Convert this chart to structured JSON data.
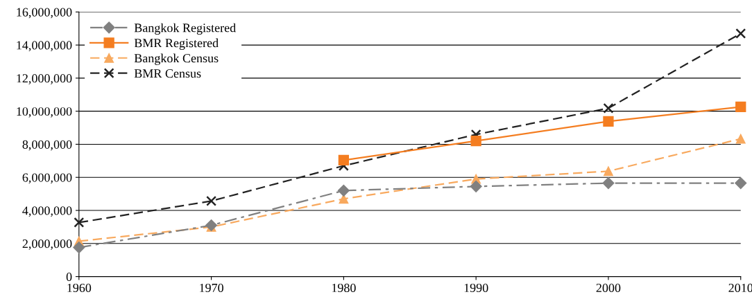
{
  "chart_data": {
    "type": "line",
    "x": [
      1960,
      1970,
      1980,
      1990,
      2000,
      2010
    ],
    "xlim": [
      1960,
      2010
    ],
    "xticks": [
      1960,
      1970,
      1980,
      1990,
      2000,
      2010
    ],
    "ylim": [
      0,
      16000000
    ],
    "yticks": [
      0,
      {
        "value": 2000000,
        "label": "2,000,000"
      },
      {
        "value": 4000000,
        "label": "4,000,000"
      },
      {
        "value": 6000000,
        "label": "6,000,000"
      },
      {
        "value": 8000000,
        "label": "8,000,000"
      },
      {
        "value": 10000000,
        "label": "10,000,000"
      },
      {
        "value": 12000000,
        "label": "12,000,000"
      },
      {
        "value": 14000000,
        "label": "14,000,000"
      },
      {
        "value": 16000000,
        "label": "16,000,000"
      }
    ],
    "grid": "y",
    "legend": "top left",
    "series": [
      {
        "name": "Bangkok Registered",
        "color": "#808080",
        "marker": "diamond",
        "line_style": "dashdot",
        "values": [
          1760000,
          3100000,
          5200000,
          5450000,
          5650000,
          5650000
        ]
      },
      {
        "name": "BMR Registered",
        "color": "#f47d20",
        "marker": "square",
        "line_style": "solid",
        "values": [
          null,
          null,
          7040000,
          8200000,
          9380000,
          10260000
        ]
      },
      {
        "name": "Bangkok Census",
        "color": "#f8a95e",
        "marker": "triangle",
        "line_style": "dashed",
        "values": [
          2140000,
          3000000,
          4700000,
          5900000,
          6370000,
          8330000
        ]
      },
      {
        "name": "BMR Census",
        "color": "#222222",
        "marker": "cross",
        "line_style": "dashed",
        "values": [
          3270000,
          4570000,
          6700000,
          8590000,
          10180000,
          14700000
        ]
      }
    ]
  }
}
